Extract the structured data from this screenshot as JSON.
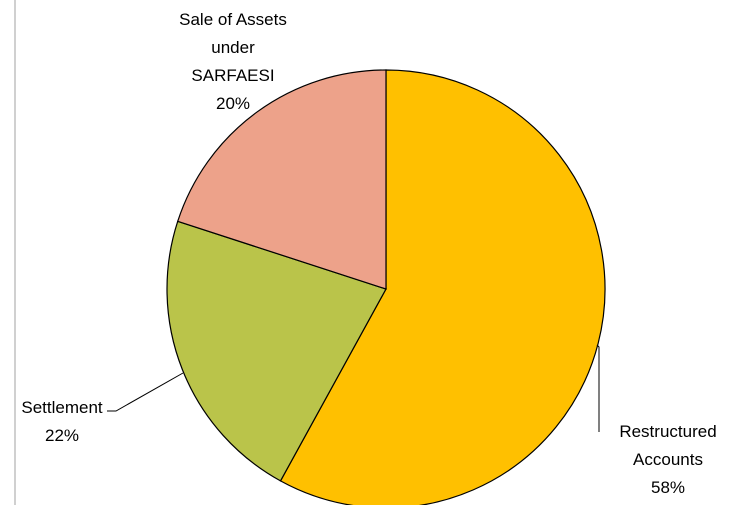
{
  "chart_data": {
    "type": "pie",
    "categories": [
      "Restructured Accounts",
      "Settlement",
      "Sale of Assets under SARFAESI"
    ],
    "values": [
      58,
      22,
      20
    ],
    "value_labels": [
      "58%",
      "22%",
      "20%"
    ],
    "colors": [
      "#ffc000",
      "#bac44a",
      "#eda28a"
    ]
  }
}
